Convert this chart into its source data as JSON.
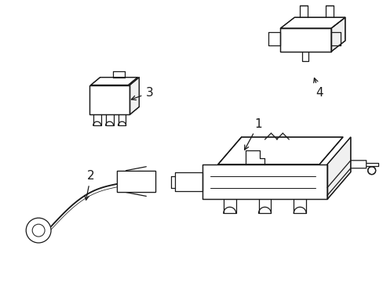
{
  "background_color": "#ffffff",
  "line_color": "#1a1a1a",
  "line_width": 0.9,
  "fig_width": 4.89,
  "fig_height": 3.6,
  "dpi": 100,
  "label_fontsize": 11
}
